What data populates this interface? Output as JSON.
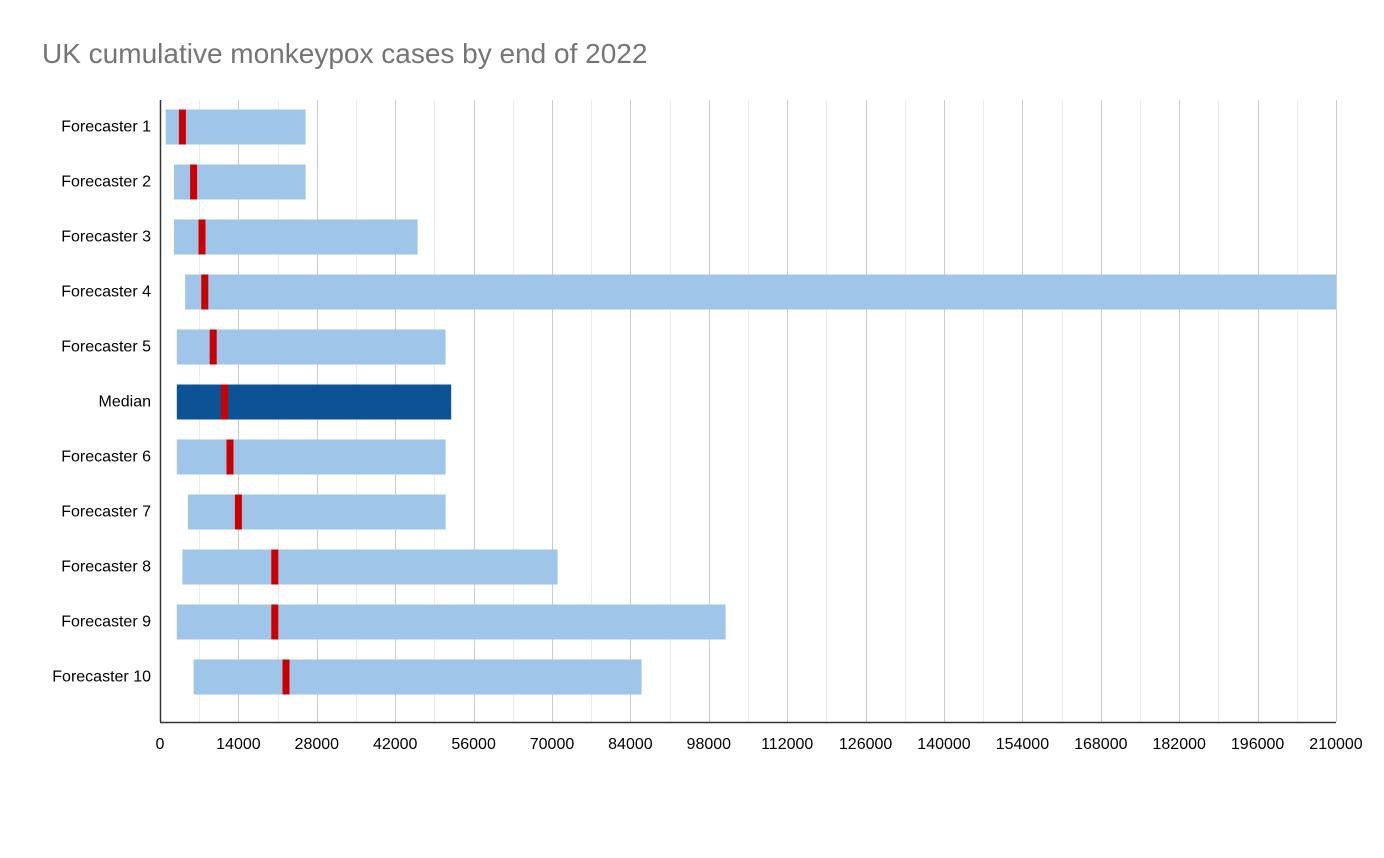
{
  "chart_data": {
    "type": "bar",
    "subtype": "floating-range-with-marker",
    "orientation": "horizontal",
    "title": "UK cumulative monkeypox cases by end of 2022",
    "xlabel": "",
    "ylabel": "",
    "xlim": [
      0,
      210000
    ],
    "x_ticks": [
      0,
      14000,
      28000,
      42000,
      56000,
      70000,
      84000,
      98000,
      112000,
      126000,
      140000,
      154000,
      168000,
      182000,
      196000,
      210000
    ],
    "grid": true,
    "minor_gridlines_per_major": 1,
    "legend": "none",
    "categories": [
      "Forecaster 1",
      "Forecaster 2",
      "Forecaster 3",
      "Forecaster 4",
      "Forecaster 5",
      "Median",
      "Forecaster 6",
      "Forecaster 7",
      "Forecaster 8",
      "Forecaster 9",
      "Forecaster 10"
    ],
    "series": [
      {
        "role": "low",
        "values": [
          1000,
          2500,
          2500,
          4500,
          3000,
          3000,
          3000,
          5000,
          4000,
          3000,
          6000
        ]
      },
      {
        "role": "high",
        "values": [
          26000,
          26000,
          46000,
          210000,
          51000,
          52000,
          51000,
          51000,
          71000,
          101000,
          86000
        ]
      },
      {
        "role": "point_estimate",
        "values": [
          4000,
          6000,
          7500,
          8000,
          9500,
          11500,
          12500,
          14000,
          20500,
          20500,
          22500
        ]
      }
    ],
    "colors": {
      "range": "#9fc5e8",
      "median_range": "#0b5394",
      "marker": "#cc0000",
      "grid": "#d9d9d9",
      "axis": "#333333",
      "title": "#757575"
    }
  }
}
